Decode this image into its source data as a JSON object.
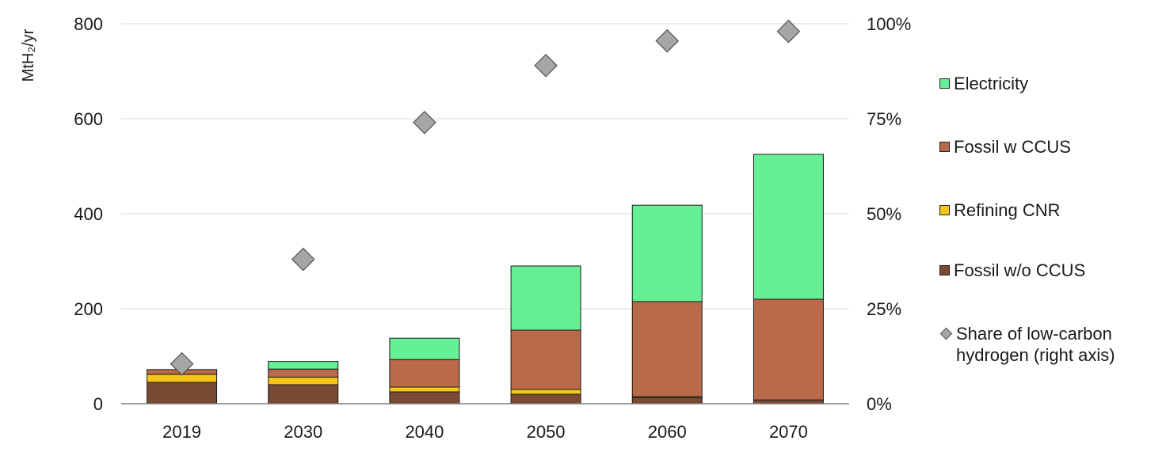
{
  "chart_data": {
    "type": "bar",
    "stacked": true,
    "categories": [
      "2019",
      "2030",
      "2040",
      "2050",
      "2060",
      "2070"
    ],
    "series": [
      {
        "name": "Fossil w/o CCUS",
        "color": "#7a4a35",
        "values": [
          45,
          40,
          25,
          20,
          13,
          8
        ]
      },
      {
        "name": "Refining CNR",
        "color": "#f5c518",
        "values": [
          17,
          16,
          10,
          10,
          2,
          0
        ]
      },
      {
        "name": "Fossil w CCUS",
        "color": "#b96a4a",
        "values": [
          10,
          17,
          58,
          125,
          200,
          212
        ]
      },
      {
        "name": "Electricity",
        "color": "#66f095",
        "values": [
          0,
          16,
          45,
          135,
          203,
          305
        ]
      },
      {
        "name": "Share of low-carbon hydrogen (right axis)",
        "color": "#a6a6a6",
        "axis": "right",
        "marker": "diamond",
        "values": [
          10.5,
          38,
          74,
          89,
          95.5,
          98
        ]
      }
    ],
    "ylabel": "MtH₂/yr",
    "ylim": [
      0,
      800
    ],
    "yticks": [
      "0",
      "200",
      "400",
      "600",
      "800"
    ],
    "y2lim": [
      0,
      100
    ],
    "y2ticks": [
      "0%",
      "25%",
      "50%",
      "75%",
      "100%"
    ],
    "grid": true,
    "legend_position": "right"
  },
  "legend": {
    "items": [
      {
        "label": "Electricity",
        "color": "#66f095",
        "kind": "swatch"
      },
      {
        "label": "Fossil w CCUS",
        "color": "#b96a4a",
        "kind": "swatch"
      },
      {
        "label": "Refining CNR",
        "color": "#f5c518",
        "kind": "swatch"
      },
      {
        "label": "Fossil w/o CCUS",
        "color": "#7a4a35",
        "kind": "swatch"
      },
      {
        "label": "Share of low-carbon\nhydrogen (right axis)",
        "color": "#a6a6a6",
        "kind": "diamond"
      }
    ]
  }
}
